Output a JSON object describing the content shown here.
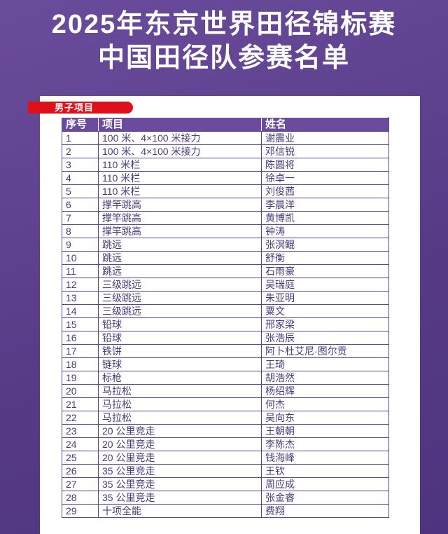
{
  "title": {
    "line1": "2025年东京世界田径锦标赛",
    "line2": "中国田径队参赛名单"
  },
  "section_label": "男子项目",
  "colors": {
    "background": "#5f4290",
    "accent": "#e0101a",
    "table_header": "#6a4b9e"
  },
  "table": {
    "headers": [
      "序号",
      "项目",
      "姓名"
    ],
    "rows": [
      [
        "1",
        "100 米、4×100 米接力",
        "谢震业"
      ],
      [
        "2",
        "100 米、4×100 米接力",
        "邓信锐"
      ],
      [
        "3",
        "110 米栏",
        "陈圆将"
      ],
      [
        "4",
        "110 米栏",
        "徐卓一"
      ],
      [
        "5",
        "110 米栏",
        "刘俊茜"
      ],
      [
        "6",
        "撑竿跳高",
        "李晨洋"
      ],
      [
        "7",
        "撑竿跳高",
        "黄博凯"
      ],
      [
        "8",
        "撑竿跳高",
        "钟涛"
      ],
      [
        "9",
        "跳远",
        "张溟鲲"
      ],
      [
        "10",
        "跳远",
        "舒衡"
      ],
      [
        "11",
        "跳远",
        "石雨豪"
      ],
      [
        "12",
        "三级跳远",
        "吴瑞庭"
      ],
      [
        "13",
        "三级跳远",
        "朱亚明"
      ],
      [
        "14",
        "三级跳远",
        "粟文"
      ],
      [
        "15",
        "铅球",
        "邢家梁"
      ],
      [
        "16",
        "铅球",
        "张浩辰"
      ],
      [
        "17",
        "铁饼",
        "阿卜杜艾尼·图尔贡"
      ],
      [
        "18",
        "链球",
        "王琦"
      ],
      [
        "19",
        "标枪",
        "胡浩然"
      ],
      [
        "20",
        "马拉松",
        "杨绍辉"
      ],
      [
        "21",
        "马拉松",
        "何杰"
      ],
      [
        "22",
        "马拉松",
        "吴向东"
      ],
      [
        "23",
        "20 公里竞走",
        "王朝朝"
      ],
      [
        "24",
        "20 公里竞走",
        "李陈杰"
      ],
      [
        "25",
        "20 公里竞走",
        "钱海峰"
      ],
      [
        "26",
        "35 公里竞走",
        "王钦"
      ],
      [
        "27",
        "35 公里竞走",
        "周应成"
      ],
      [
        "28",
        "35 公里竞走",
        "张金睿"
      ],
      [
        "29",
        "十项全能",
        "费翔"
      ]
    ]
  }
}
